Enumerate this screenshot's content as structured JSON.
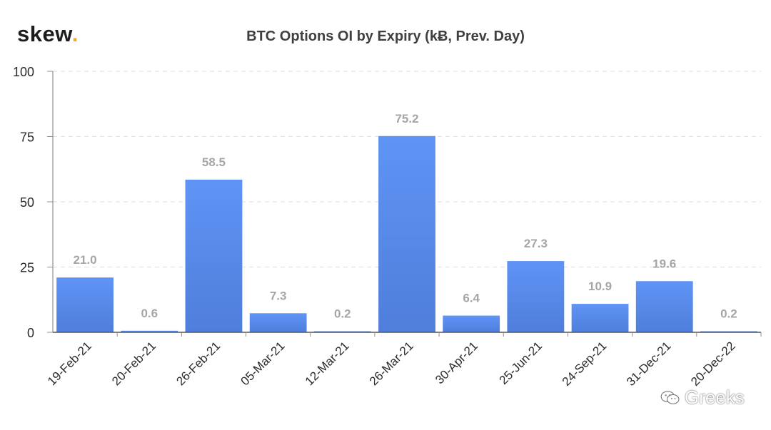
{
  "brand": {
    "name": "skew",
    "dot": "."
  },
  "watermark": {
    "text": "Greeks",
    "icon": "wechat-icon"
  },
  "colors": {
    "bar": "#5b8ef0",
    "bar_dark": "#4f7fdd",
    "label": "#a6a6a6",
    "grid": "#e3e3e3",
    "axis": "#8f8f8f",
    "text": "#3f3f3f"
  },
  "chart_data": {
    "type": "bar",
    "title": "BTC Options OI by Expiry (kɃ, Prev. Day)",
    "xlabel": "",
    "ylabel": "",
    "categories": [
      "19-Feb-21",
      "20-Feb-21",
      "26-Feb-21",
      "05-Mar-21",
      "12-Mar-21",
      "26-Mar-21",
      "30-Apr-21",
      "25-Jun-21",
      "24-Sep-21",
      "31-Dec-21",
      "20-Dec-22"
    ],
    "values": [
      21.0,
      0.6,
      58.5,
      7.3,
      0.2,
      75.2,
      6.4,
      27.3,
      10.9,
      19.6,
      0.2
    ],
    "data_labels": [
      "21.0",
      "0.6",
      "58.5",
      "7.3",
      "0.2",
      "75.2",
      "6.4",
      "27.3",
      "10.9",
      "19.6",
      "0.2"
    ],
    "ylim": [
      0,
      100
    ],
    "yticks": [
      0,
      25,
      50,
      75,
      100
    ],
    "grid": true,
    "legend": "none"
  }
}
